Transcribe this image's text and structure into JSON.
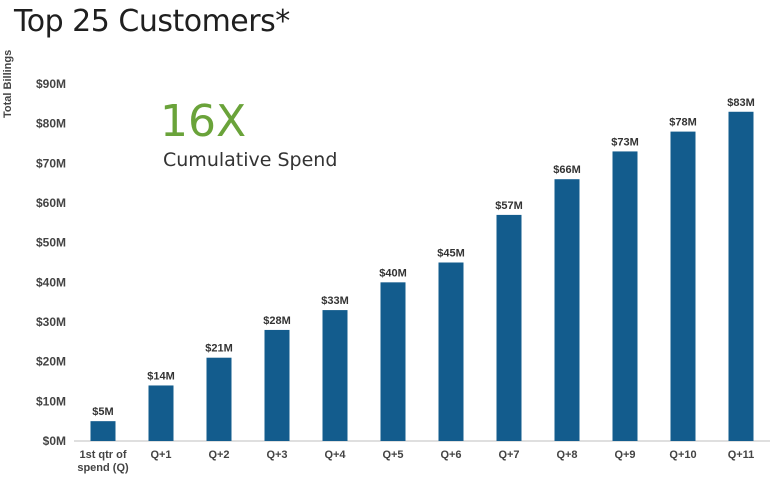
{
  "title": "Top 25 Customers*",
  "callout": {
    "headline": "16X",
    "text": "Cumulative Spend"
  },
  "colors": {
    "bar": "#135c8d",
    "headline": "#6aa33a"
  },
  "chart_data": {
    "type": "bar",
    "ylabel": "Total Billings",
    "xlabel": "",
    "ylim": [
      0,
      90
    ],
    "yticks": [
      0,
      10,
      20,
      30,
      40,
      50,
      60,
      70,
      80,
      90
    ],
    "ytick_labels": [
      "$0M",
      "$10M",
      "$20M",
      "$30M",
      "$40M",
      "$50M",
      "$60M",
      "$70M",
      "$80M",
      "$90M"
    ],
    "categories": [
      [
        "1st qtr of",
        "spend (Q)"
      ],
      [
        "Q+1"
      ],
      [
        "Q+2"
      ],
      [
        "Q+3"
      ],
      [
        "Q+4"
      ],
      [
        "Q+5"
      ],
      [
        "Q+6"
      ],
      [
        "Q+7"
      ],
      [
        "Q+8"
      ],
      [
        "Q+9"
      ],
      [
        "Q+10"
      ],
      [
        "Q+11"
      ]
    ],
    "values": [
      5,
      14,
      21,
      28,
      33,
      40,
      45,
      57,
      66,
      73,
      78,
      83
    ],
    "data_labels": [
      "$5M",
      "$14M",
      "$21M",
      "$28M",
      "$33M",
      "$40M",
      "$45M",
      "$57M",
      "$66M",
      "$73M",
      "$78M",
      "$83M"
    ],
    "grid": false
  }
}
